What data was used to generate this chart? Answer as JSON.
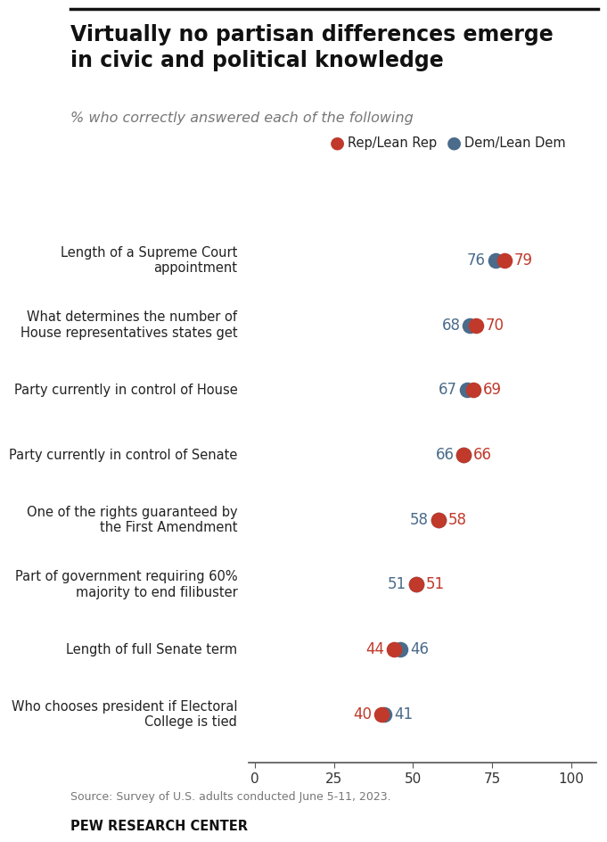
{
  "title": "Virtually no partisan differences emerge\nin civic and political knowledge",
  "subtitle": "% who correctly answered each of the following",
  "categories": [
    "Length of a Supreme Court\nappointment",
    "What determines the number of\nHouse representatives states get",
    "Party currently in control of House",
    "Party currently in control of Senate",
    "One of the rights guaranteed by\nthe First Amendment",
    "Part of government requiring 60%\nmajority to end filibuster",
    "Length of full Senate term",
    "Who chooses president if Electoral\nCollege is tied"
  ],
  "rep_values": [
    79,
    70,
    69,
    66,
    58,
    51,
    44,
    40
  ],
  "dem_values": [
    76,
    68,
    67,
    66,
    58,
    51,
    46,
    41
  ],
  "rep_color": "#c0392b",
  "dem_color": "#4a6b8a",
  "rep_label": "Rep/Lean Rep",
  "dem_label": "Dem/Lean Dem",
  "xmin": 0,
  "xmax": 100,
  "xticks": [
    0,
    25,
    50,
    75,
    100
  ],
  "source": "Source: Survey of U.S. adults conducted June 5-11, 2023.",
  "footer": "PEW RESEARCH CENTER",
  "background_color": "#ffffff"
}
